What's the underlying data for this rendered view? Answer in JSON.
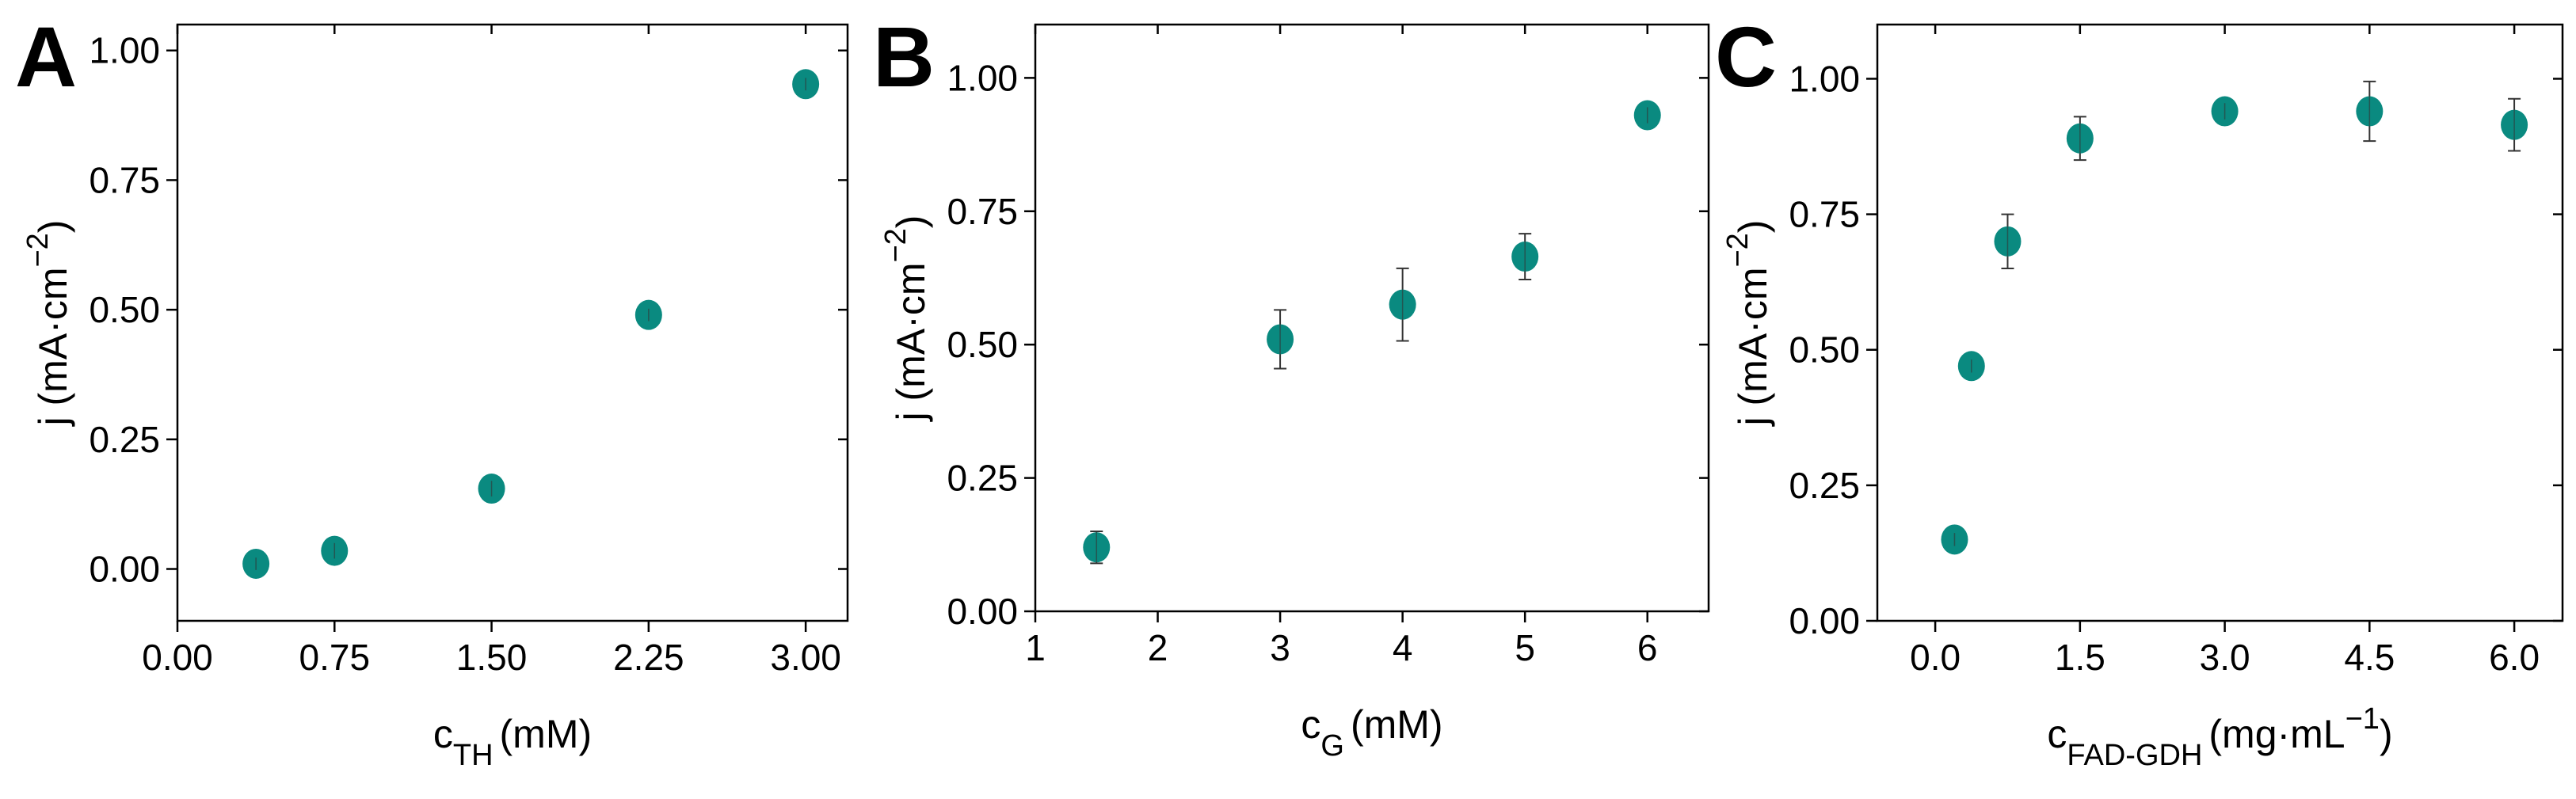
{
  "chart_data": [
    {
      "type": "scatter",
      "panel_label": "A",
      "x_label": [
        {
          "text": "c",
          "script": "none"
        },
        {
          "text": "TH",
          "script": "sub"
        },
        {
          "text": "(mM)",
          "script": "none"
        }
      ],
      "y_label": [
        {
          "text": "j (mA·cm",
          "script": "none"
        },
        {
          "text": "−2",
          "script": "super"
        },
        {
          "text": ")",
          "script": "none"
        }
      ],
      "x": [
        0.375,
        0.75,
        1.5,
        2.25,
        3.0
      ],
      "values": [
        0.01,
        0.035,
        0.155,
        0.49,
        0.935
      ],
      "errors": [
        0.012,
        0.015,
        0.015,
        0.012,
        0.012
      ],
      "color": "#0a8a80",
      "xlim": [
        0,
        3.2
      ],
      "ylim": [
        -0.1,
        1.05
      ],
      "xticks": [
        {
          "value": 0,
          "label": "0.00"
        },
        {
          "value": 0.75,
          "label": "0.75"
        },
        {
          "value": 1.5,
          "label": "1.50"
        },
        {
          "value": 2.25,
          "label": "2.25"
        },
        {
          "value": 3,
          "label": "3.00"
        }
      ],
      "yticks": [
        {
          "value": 0,
          "label": "0.00"
        },
        {
          "value": 0.25,
          "label": "0.25"
        },
        {
          "value": 0.5,
          "label": "0.50"
        },
        {
          "value": 0.75,
          "label": "0.75"
        },
        {
          "value": 1,
          "label": "1.00"
        }
      ]
    },
    {
      "type": "scatter",
      "panel_label": "B",
      "x_label": [
        {
          "text": "c",
          "script": "none"
        },
        {
          "text": "G",
          "script": "sub"
        },
        {
          "text": "(mM)",
          "script": "none"
        }
      ],
      "y_label": [
        {
          "text": "j (mA·cm",
          "script": "none"
        },
        {
          "text": "−2",
          "script": "super"
        },
        {
          "text": ")",
          "script": "none"
        }
      ],
      "x": [
        1.5,
        3,
        4,
        5,
        6
      ],
      "values": [
        0.12,
        0.51,
        0.575,
        0.665,
        0.93
      ],
      "errors": [
        0.03,
        0.055,
        0.068,
        0.043,
        0.015
      ],
      "color": "#0a8a80",
      "xlim": [
        1,
        6.5
      ],
      "ylim": [
        0,
        1.1
      ],
      "xticks": [
        1,
        2,
        3,
        4,
        5,
        6
      ],
      "yticks": [
        {
          "value": 0,
          "label": "0.00"
        },
        {
          "value": 0.25,
          "label": "0.25"
        },
        {
          "value": 0.5,
          "label": "0.50"
        },
        {
          "value": 0.75,
          "label": "0.75"
        },
        {
          "value": 1,
          "label": "1.00"
        }
      ]
    },
    {
      "type": "scatter",
      "panel_label": "C",
      "x_label": [
        {
          "text": "c",
          "script": "none"
        },
        {
          "text": "FAD-GDH",
          "script": "sub"
        },
        {
          "text": "(mg·mL",
          "script": "none"
        },
        {
          "text": "−1",
          "script": "super"
        },
        {
          "text": ")",
          "script": "none"
        }
      ],
      "y_label": [
        {
          "text": "j (mA·cm",
          "script": "none"
        },
        {
          "text": "−2",
          "script": "super"
        },
        {
          "text": ")",
          "script": "none"
        }
      ],
      "x": [
        0.2,
        0.375,
        0.75,
        1.5,
        3.0,
        4.5,
        6.0
      ],
      "values": [
        0.15,
        0.47,
        0.7,
        0.89,
        0.94,
        0.94,
        0.915
      ],
      "errors": [
        0.012,
        0.012,
        0.05,
        0.04,
        0.015,
        0.055,
        0.048
      ],
      "color": "#0a8a80",
      "xlim": [
        -0.6,
        6.5
      ],
      "ylim": [
        0,
        1.1
      ],
      "xticks": [
        {
          "value": 0,
          "label": "0.0"
        },
        {
          "value": 1.5,
          "label": "1.5"
        },
        {
          "value": 3,
          "label": "3.0"
        },
        {
          "value": 4.5,
          "label": "4.5"
        },
        {
          "value": 6,
          "label": "6.0"
        }
      ],
      "yticks": [
        {
          "value": 0,
          "label": "0.00"
        },
        {
          "value": 0.25,
          "label": "0.25"
        },
        {
          "value": 0.5,
          "label": "0.50"
        },
        {
          "value": 0.75,
          "label": "0.75"
        },
        {
          "value": 1,
          "label": "1.00"
        }
      ]
    }
  ]
}
